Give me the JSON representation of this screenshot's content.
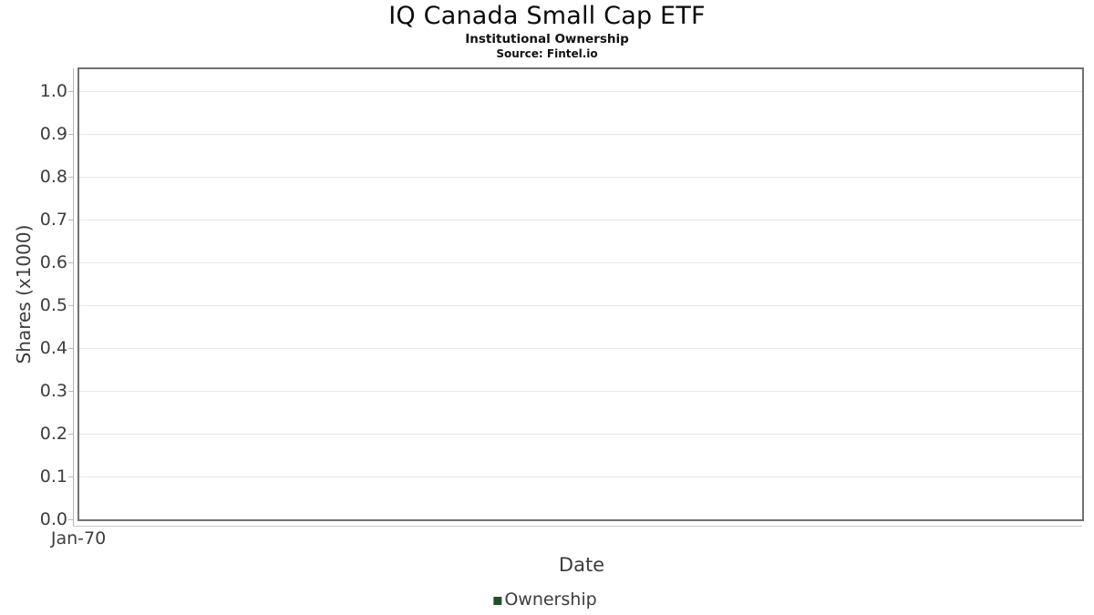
{
  "header": {
    "title": "IQ Canada Small Cap ETF",
    "subtitle": "Institutional Ownership",
    "source": "Source: Fintel.io"
  },
  "chart_data": {
    "type": "line",
    "title": "IQ Canada Small Cap ETF",
    "subtitle": "Institutional Ownership",
    "source": "Source: Fintel.io",
    "xlabel": "Date",
    "ylabel": "Shares (x1000)",
    "x_tick_labels": [
      "Jan-70"
    ],
    "y_tick_labels": [
      "1.0",
      "0.9",
      "0.8",
      "0.7",
      "0.6",
      "0.5",
      "0.4",
      "0.3",
      "0.2",
      "0.1",
      "0.0"
    ],
    "ylim": [
      0.0,
      1.05
    ],
    "grid": true,
    "legend_position": "bottom",
    "series": [
      {
        "name": "Ownership",
        "color": "#1e5128",
        "x": [],
        "values": []
      }
    ]
  },
  "colors": {
    "legend_green": "#1e5128",
    "panel_border": "#717171",
    "gridline": "#e6e6e6",
    "axis_line": "#b8b8b8",
    "tick_text": "#3d3d3d",
    "title_text": "#0a0a0a"
  }
}
